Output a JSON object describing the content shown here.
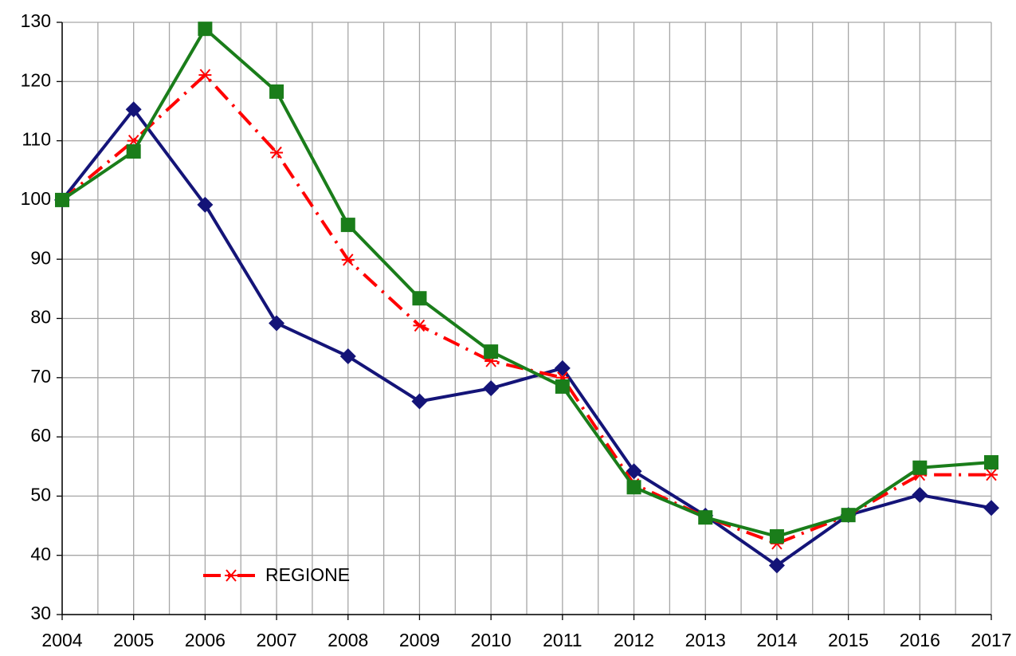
{
  "chart_data": {
    "type": "line",
    "x": [
      2004,
      2005,
      2006,
      2007,
      2008,
      2009,
      2010,
      2011,
      2012,
      2013,
      2014,
      2015,
      2016,
      2017
    ],
    "xlim": [
      2004,
      2017
    ],
    "xticks": [
      2004,
      2005,
      2006,
      2007,
      2008,
      2009,
      2010,
      2011,
      2012,
      2013,
      2014,
      2015,
      2016,
      2017
    ],
    "ylim": [
      30,
      130
    ],
    "yticks": [
      30,
      40,
      50,
      60,
      70,
      80,
      90,
      100,
      110,
      120,
      130
    ],
    "grid": true,
    "x_minor_grid": true,
    "legend": "lower left",
    "series": [
      {
        "color": "#141478",
        "marker": "diamond",
        "dash": "solid",
        "values": [
          100,
          115.3,
          99.2,
          79.2,
          73.6,
          66,
          68.2,
          71.6,
          54.2,
          46.7,
          38.3,
          46.8,
          50.2,
          48
        ]
      },
      {
        "name": "REGIONE",
        "color": "#ff0000",
        "marker": "star",
        "dash": "dashdot",
        "values": [
          100,
          110,
          121.1,
          108,
          89.9,
          78.8,
          72.8,
          70,
          52,
          46.5,
          42,
          46.8,
          53.6,
          53.6
        ]
      },
      {
        "color": "#1a7d1a",
        "marker": "square",
        "dash": "solid",
        "values": [
          100,
          108.2,
          128.9,
          118.3,
          95.8,
          83.4,
          74.4,
          68.5,
          51.5,
          46.4,
          43.2,
          46.8,
          54.8,
          55.7
        ]
      }
    ]
  }
}
